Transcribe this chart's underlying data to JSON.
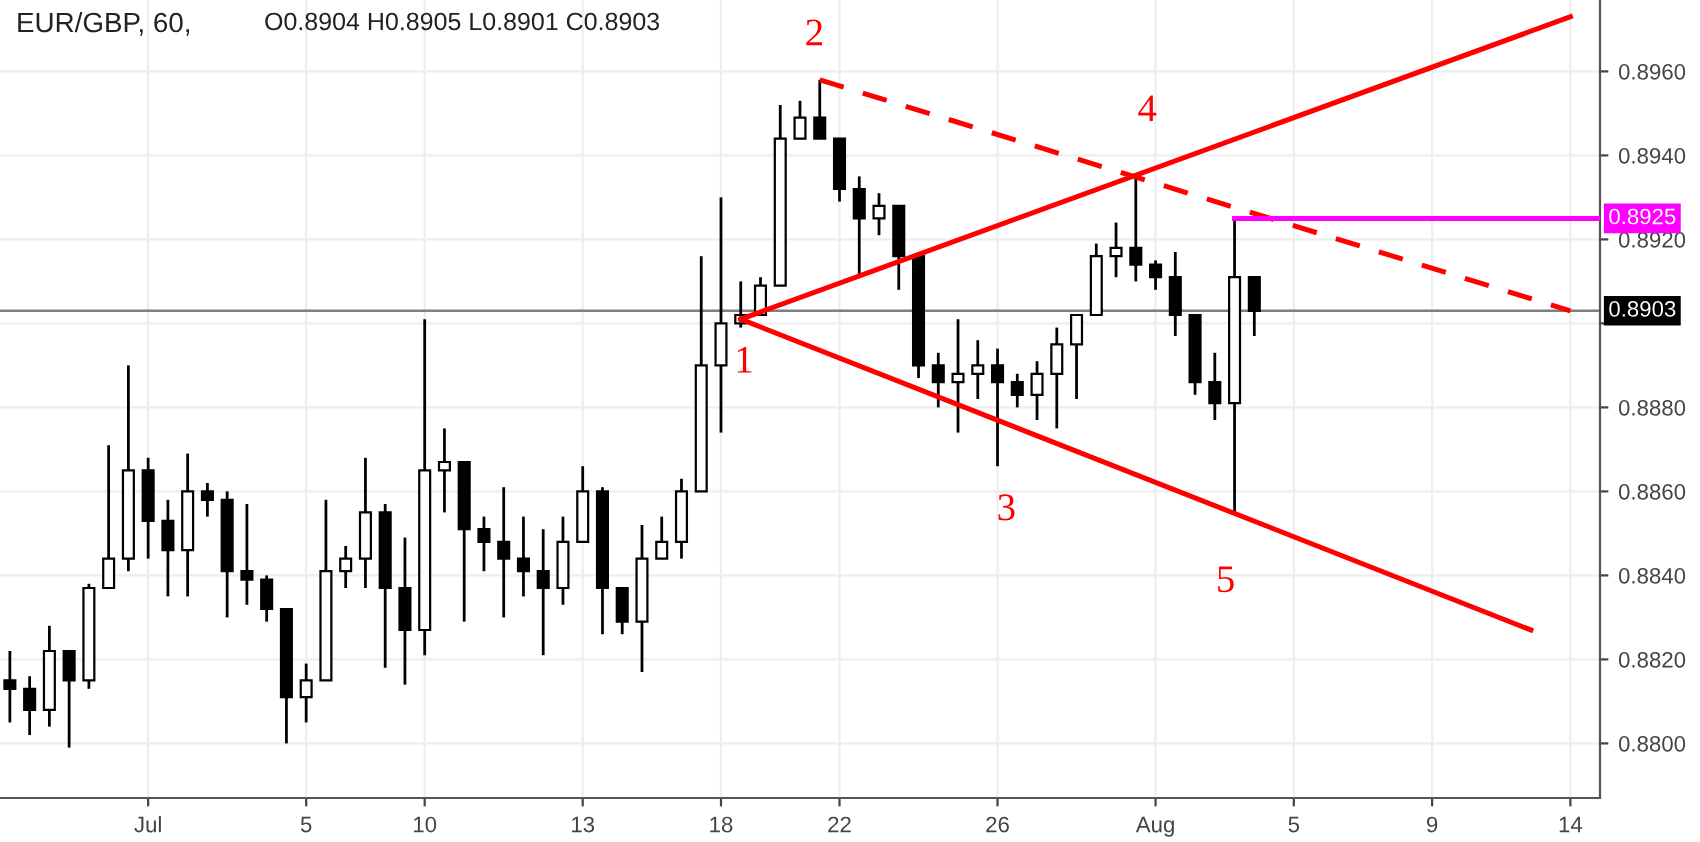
{
  "chart_data": {
    "type": "candlestick",
    "title": "EUR/GBP, 60,",
    "subtitle": "O0.8904 H0.8905 L0.8901 C0.8903",
    "categories": [
      null,
      null,
      null,
      null,
      null,
      null,
      null,
      "Jul",
      null,
      null,
      null,
      null,
      null,
      null,
      null,
      "5",
      null,
      null,
      null,
      null,
      null,
      "10",
      null,
      null,
      null,
      null,
      null,
      null,
      null,
      "13",
      null,
      null,
      null,
      null,
      null,
      null,
      "18",
      null,
      null,
      null,
      null,
      null,
      "22",
      null,
      null,
      null,
      null,
      null,
      null,
      null,
      "26",
      null,
      null,
      null,
      null,
      null,
      null,
      null,
      "Aug",
      null,
      null,
      null,
      null,
      null,
      null,
      "5",
      null,
      null,
      null,
      null,
      null,
      null,
      "9",
      null,
      null,
      null,
      null,
      null,
      null,
      "14",
      null
    ],
    "ylim": [
      0.8787,
      0.8977
    ],
    "yticks": [
      {
        "value": 0.88,
        "label": "0.8800"
      },
      {
        "value": 0.882,
        "label": "0.8820"
      },
      {
        "value": 0.884,
        "label": "0.8840"
      },
      {
        "value": 0.886,
        "label": "0.8860"
      },
      {
        "value": 0.888,
        "label": "0.8880"
      },
      {
        "value": 0.89,
        "label": null
      },
      {
        "value": 0.892,
        "label": "0.8920"
      },
      {
        "value": 0.894,
        "label": "0.8940"
      },
      {
        "value": 0.896,
        "label": "0.8960"
      }
    ],
    "grid": true,
    "series": [
      {
        "color": "#000000",
        "ohlc": [
          [
            0.8815,
            0.8822,
            0.8805,
            0.8813
          ],
          [
            0.8813,
            0.8816,
            0.8802,
            0.8808
          ],
          [
            0.8808,
            0.8828,
            0.8804,
            0.8822
          ],
          [
            0.8822,
            0.8822,
            0.8799,
            0.8815
          ],
          [
            0.8815,
            0.8838,
            0.8813,
            0.8837
          ],
          [
            0.8837,
            0.8871,
            0.8837,
            0.8844
          ],
          [
            0.8844,
            0.889,
            0.8841,
            0.8865
          ],
          [
            0.8865,
            0.8868,
            0.8844,
            0.8853
          ],
          [
            0.8853,
            0.8858,
            0.8835,
            0.8846
          ],
          [
            0.8846,
            0.8869,
            0.8835,
            0.886
          ],
          [
            0.886,
            0.8862,
            0.8854,
            0.8858
          ],
          [
            0.8858,
            0.886,
            0.883,
            0.8841
          ],
          [
            0.8841,
            0.8857,
            0.8833,
            0.8839
          ],
          [
            0.8839,
            0.884,
            0.8829,
            0.8832
          ],
          [
            0.8832,
            0.8832,
            0.88,
            0.8811
          ],
          [
            0.8811,
            0.8819,
            0.8805,
            0.8815
          ],
          [
            0.8815,
            0.8858,
            0.8815,
            0.8841
          ],
          [
            0.8841,
            0.8847,
            0.8837,
            0.8844
          ],
          [
            0.8844,
            0.8868,
            0.8837,
            0.8855
          ],
          [
            0.8855,
            0.8857,
            0.8818,
            0.8837
          ],
          [
            0.8837,
            0.8849,
            0.8814,
            0.8827
          ],
          [
            0.8827,
            0.8901,
            0.8821,
            0.8865
          ],
          [
            0.8865,
            0.8875,
            0.8855,
            0.8867
          ],
          [
            0.8867,
            0.8867,
            0.8829,
            0.8851
          ],
          [
            0.8851,
            0.8854,
            0.8841,
            0.8848
          ],
          [
            0.8848,
            0.8861,
            0.883,
            0.8844
          ],
          [
            0.8844,
            0.8854,
            0.8835,
            0.8841
          ],
          [
            0.8841,
            0.8851,
            0.8821,
            0.8837
          ],
          [
            0.8837,
            0.8854,
            0.8833,
            0.8848
          ],
          [
            0.8848,
            0.8866,
            0.8848,
            0.886
          ],
          [
            0.886,
            0.8861,
            0.8826,
            0.8837
          ],
          [
            0.8837,
            0.8837,
            0.8826,
            0.8829
          ],
          [
            0.8829,
            0.8852,
            0.8817,
            0.8844
          ],
          [
            0.8844,
            0.8854,
            0.8844,
            0.8848
          ],
          [
            0.8848,
            0.8863,
            0.8844,
            0.886
          ],
          [
            0.886,
            0.8916,
            0.886,
            0.889
          ],
          [
            0.889,
            0.893,
            0.8874,
            0.89
          ],
          [
            0.89,
            0.891,
            0.8899,
            0.8902
          ],
          [
            0.8902,
            0.8911,
            0.8902,
            0.8909
          ],
          [
            0.8909,
            0.8952,
            0.8909,
            0.8944
          ],
          [
            0.8944,
            0.8953,
            0.8944,
            0.8949
          ],
          [
            0.8949,
            0.8958,
            0.8944,
            0.8944
          ],
          [
            0.8944,
            0.8944,
            0.8929,
            0.8932
          ],
          [
            0.8932,
            0.8935,
            0.8911,
            0.8925
          ],
          [
            0.8925,
            0.8931,
            0.8921,
            0.8928
          ],
          [
            0.8928,
            0.8928,
            0.8908,
            0.8916
          ],
          [
            0.8916,
            0.8917,
            0.8887,
            0.889
          ],
          [
            0.889,
            0.8893,
            0.888,
            0.8886
          ],
          [
            0.8886,
            0.8901,
            0.8874,
            0.8888
          ],
          [
            0.8888,
            0.8896,
            0.8882,
            0.889
          ],
          [
            0.889,
            0.8894,
            0.8866,
            0.8886
          ],
          [
            0.8886,
            0.8888,
            0.888,
            0.8883
          ],
          [
            0.8883,
            0.8891,
            0.8877,
            0.8888
          ],
          [
            0.8888,
            0.8899,
            0.8875,
            0.8895
          ],
          [
            0.8895,
            0.8902,
            0.8882,
            0.8902
          ],
          [
            0.8902,
            0.8919,
            0.8902,
            0.8916
          ],
          [
            0.8916,
            0.8924,
            0.8911,
            0.8918
          ],
          [
            0.8918,
            0.8935,
            0.891,
            0.8914
          ],
          [
            0.8914,
            0.8915,
            0.8908,
            0.8911
          ],
          [
            0.8911,
            0.8917,
            0.8897,
            0.8902
          ],
          [
            0.8902,
            0.8902,
            0.8883,
            0.8886
          ],
          [
            0.8886,
            0.8893,
            0.8877,
            0.8881
          ],
          [
            0.8881,
            0.8925,
            0.8855,
            0.8911
          ],
          [
            0.8911,
            0.8911,
            0.8897,
            0.8903
          ],
          null,
          null,
          null,
          null,
          null,
          null,
          null,
          null,
          null,
          null,
          null,
          null,
          null,
          null,
          null,
          null,
          null
        ]
      },
      {
        "type": "line",
        "color": "#ff0000",
        "values": [
          null,
          null,
          null,
          null,
          null,
          null,
          null,
          null,
          null,
          null,
          null,
          null,
          null,
          null,
          null,
          null,
          null,
          null,
          null,
          null,
          null,
          null,
          null,
          null,
          null,
          null,
          null,
          null,
          null,
          null,
          null,
          null,
          null,
          null,
          null,
          null,
          null,
          0.8901,
          null,
          null,
          null,
          null,
          null,
          null,
          null,
          null,
          null,
          null,
          null,
          null,
          null,
          null,
          null,
          null,
          null,
          null,
          null,
          null,
          null,
          null,
          null,
          null,
          null,
          null,
          null,
          null,
          null,
          null,
          null,
          null,
          null,
          null,
          null,
          null,
          null,
          null,
          null,
          null,
          null,
          0.8973,
          null
        ]
      },
      {
        "type": "line",
        "color": "#ff0000",
        "values": [
          null,
          null,
          null,
          null,
          null,
          null,
          null,
          null,
          null,
          null,
          null,
          null,
          null,
          null,
          null,
          null,
          null,
          null,
          null,
          null,
          null,
          null,
          null,
          null,
          null,
          null,
          null,
          null,
          null,
          null,
          null,
          null,
          null,
          null,
          null,
          null,
          null,
          0.8901,
          null,
          null,
          null,
          null,
          null,
          null,
          null,
          null,
          null,
          null,
          null,
          null,
          null,
          null,
          null,
          null,
          null,
          null,
          null,
          null,
          null,
          null,
          null,
          null,
          null,
          null,
          null,
          null,
          null,
          null,
          null,
          null,
          null,
          null,
          null,
          null,
          null,
          null,
          null,
          0.8827,
          null,
          null,
          null
        ]
      },
      {
        "type": "line",
        "color": "#ff0000",
        "line_style": "dashed",
        "values": [
          null,
          null,
          null,
          null,
          null,
          null,
          null,
          null,
          null,
          null,
          null,
          null,
          null,
          null,
          null,
          null,
          null,
          null,
          null,
          null,
          null,
          null,
          null,
          null,
          null,
          null,
          null,
          null,
          null,
          null,
          null,
          null,
          null,
          null,
          null,
          null,
          null,
          null,
          null,
          null,
          null,
          0.8958,
          null,
          null,
          null,
          null,
          null,
          null,
          null,
          null,
          null,
          null,
          null,
          null,
          null,
          null,
          null,
          null,
          null,
          null,
          null,
          null,
          null,
          null,
          null,
          null,
          null,
          null,
          null,
          null,
          null,
          null,
          null,
          null,
          null,
          null,
          null,
          null,
          null,
          0.8903,
          null
        ]
      }
    ],
    "ref_lines": [
      {
        "axis": "y",
        "value": 0.8903,
        "label": "0.8903",
        "color": "#808080"
      },
      {
        "axis": "y",
        "value": 0.8925,
        "label": "0.8925",
        "color": "#ff00ff"
      }
    ],
    "annotations": [
      "1",
      "2",
      "3",
      "4",
      "5"
    ]
  }
}
